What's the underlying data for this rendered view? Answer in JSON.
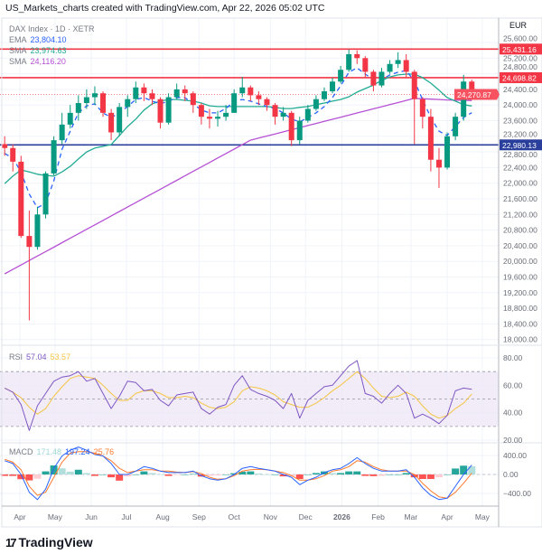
{
  "header": {
    "caption": "US_Markets_charts created with TradingView.com, Apr 22, 2026 05:02 UTC"
  },
  "legend": {
    "symbol": "DAX Index · 1D · XETR",
    "ema": {
      "label": "EMA",
      "value": "23,804.10",
      "color": "#2962ff"
    },
    "sma50": {
      "label": "SMA",
      "value": "23,974.63",
      "color": "#22ab94"
    },
    "sma200": {
      "label": "SMA",
      "value": "24,116.20",
      "color": "#b651d4"
    },
    "rsi": {
      "label": "RSI",
      "value": "57.04",
      "ma_value": "53.57",
      "color": "#7e57c2",
      "ma_color": "#f5c542"
    },
    "macd": {
      "label": "MACD",
      "hist_value": "171.48",
      "macd_value": "197.24",
      "signal_value": "25.76",
      "hist_color": "#9fd8d2",
      "macd_color": "#2962ff",
      "signal_color": "#ff7b2e"
    }
  },
  "currency": "EUR",
  "logo": {
    "text": "TradingView"
  },
  "colors": {
    "up": "#089981",
    "down": "#f23645",
    "resistance": "#f23645",
    "support": "#2a3f9c",
    "rsi_band": "#ede7f6"
  },
  "chart_data": {
    "type": "candlestick",
    "title": "DAX Index · 1D · XETR",
    "price_axis": {
      "ticks": [
        25600,
        25200,
        24800,
        24400,
        24000,
        23600,
        23200,
        22800,
        22400,
        22000,
        21600,
        21200,
        20800,
        20400,
        20000,
        19600,
        19200,
        18800,
        18400,
        18000
      ],
      "tick_labels": [
        "25,600.00",
        "25,200.00",
        "24,800.00",
        "24,400.00",
        "24,000.00",
        "23,600.00",
        "23,200.00",
        "22,800.00",
        "22,400.00",
        "22,000.00",
        "21,600.00",
        "21,200.00",
        "20,800.00",
        "20,400.00",
        "20,000.00",
        "19,600.00",
        "19,200.00",
        "18,800.00",
        "18,400.00",
        "18,000.00"
      ],
      "range": [
        18000,
        25600
      ]
    },
    "time_axis": [
      {
        "label": "Apr",
        "date": "2025-04-01"
      },
      {
        "label": "May",
        "date": "2025-05-01"
      },
      {
        "label": "Jun",
        "date": "2025-06-01"
      },
      {
        "label": "Jul",
        "date": "2025-07-01"
      },
      {
        "label": "Aug",
        "date": "2025-08-01"
      },
      {
        "label": "Sep",
        "date": "2025-09-01"
      },
      {
        "label": "Oct",
        "date": "2025-10-01"
      },
      {
        "label": "Nov",
        "date": "2025-11-01"
      },
      {
        "label": "Dec",
        "date": "2025-12-01"
      },
      {
        "label": "2026",
        "date": "2026-01-01",
        "bold": true
      },
      {
        "label": "Feb",
        "date": "2026-02-01"
      },
      {
        "label": "Mar",
        "date": "2026-03-01"
      },
      {
        "label": "Apr",
        "date": "2026-04-01"
      },
      {
        "label": "May",
        "date": "2026-05-01"
      }
    ],
    "horizontal_lines": [
      {
        "price": 25431.16,
        "label": "25,431.16",
        "color": "#f23645"
      },
      {
        "price": 24698.82,
        "label": "24,698.82",
        "color": "#f23645"
      },
      {
        "price": 22980.13,
        "label": "22,980.13",
        "color": "#2a3f9c"
      }
    ],
    "last_price": {
      "price": 24270.87,
      "label": "24,270.87",
      "color": "#f7525f"
    },
    "candles_ohlc": [
      [
        "2025-03-17",
        23000,
        23200,
        22700,
        22900
      ],
      [
        "2025-03-24",
        22900,
        23000,
        22300,
        22550
      ],
      [
        "2025-03-31",
        22550,
        22700,
        20600,
        20650
      ],
      [
        "2025-04-07",
        20650,
        21300,
        18490,
        20370
      ],
      [
        "2025-04-14",
        20370,
        21400,
        20300,
        21200
      ],
      [
        "2025-04-21",
        21200,
        22300,
        21100,
        22250
      ],
      [
        "2025-04-28",
        22250,
        23200,
        22200,
        23100
      ],
      [
        "2025-05-05",
        23100,
        23800,
        23000,
        23500
      ],
      [
        "2025-05-12",
        23500,
        24000,
        23400,
        23800
      ],
      [
        "2025-05-19",
        23800,
        24250,
        23600,
        24050
      ],
      [
        "2025-05-26",
        24050,
        24400,
        23900,
        24200
      ],
      [
        "2025-06-02",
        24200,
        24480,
        24000,
        24300
      ],
      [
        "2025-06-09",
        24300,
        24350,
        23700,
        23800
      ],
      [
        "2025-06-16",
        23800,
        23900,
        23100,
        23300
      ],
      [
        "2025-06-23",
        23300,
        24050,
        23200,
        23950
      ],
      [
        "2025-06-30",
        23950,
        24250,
        23700,
        24150
      ],
      [
        "2025-07-07",
        24150,
        24600,
        24050,
        24450
      ],
      [
        "2025-07-14",
        24450,
        24550,
        24100,
        24300
      ],
      [
        "2025-07-21",
        24300,
        24400,
        24000,
        24150
      ],
      [
        "2025-07-28",
        24150,
        24200,
        23400,
        23550
      ],
      [
        "2025-08-04",
        23550,
        24300,
        23500,
        24200
      ],
      [
        "2025-08-11",
        24200,
        24550,
        24150,
        24400
      ],
      [
        "2025-08-18",
        24400,
        24500,
        24100,
        24300
      ],
      [
        "2025-08-25",
        24300,
        24350,
        23800,
        24000
      ],
      [
        "2025-09-01",
        24000,
        24050,
        23500,
        23700
      ],
      [
        "2025-09-08",
        23700,
        23900,
        23400,
        23650
      ],
      [
        "2025-09-15",
        23650,
        23850,
        23450,
        23700
      ],
      [
        "2025-09-22",
        23700,
        24000,
        23600,
        23800
      ],
      [
        "2025-09-29",
        23800,
        24400,
        23800,
        24300
      ],
      [
        "2025-10-06",
        24300,
        24720,
        24200,
        24450
      ],
      [
        "2025-10-13",
        24450,
        24500,
        24100,
        24250
      ],
      [
        "2025-10-20",
        24250,
        24350,
        24000,
        24150
      ],
      [
        "2025-10-27",
        24150,
        24200,
        23850,
        24000
      ],
      [
        "2025-11-03",
        24000,
        24050,
        23500,
        23700
      ],
      [
        "2025-11-10",
        23700,
        23950,
        23600,
        23800
      ],
      [
        "2025-11-17",
        23800,
        23850,
        22950,
        23100
      ],
      [
        "2025-11-24",
        23100,
        23700,
        23000,
        23600
      ],
      [
        "2025-12-01",
        23600,
        24000,
        23550,
        23900
      ],
      [
        "2025-12-08",
        23900,
        24250,
        23850,
        24150
      ],
      [
        "2025-12-15",
        24150,
        24450,
        24100,
        24350
      ],
      [
        "2025-12-22",
        24350,
        24700,
        24300,
        24600
      ],
      [
        "2025-12-29",
        24600,
        25000,
        24550,
        24900
      ],
      [
        "2026-01-05",
        24900,
        25420,
        24850,
        25300
      ],
      [
        "2026-01-12",
        25300,
        25400,
        25050,
        25200
      ],
      [
        "2026-01-19",
        25200,
        25250,
        24700,
        24850
      ],
      [
        "2026-01-26",
        24850,
        24900,
        24350,
        24500
      ],
      [
        "2026-02-02",
        24500,
        24950,
        24450,
        24850
      ],
      [
        "2026-02-09",
        24850,
        25150,
        24800,
        25050
      ],
      [
        "2026-02-16",
        25050,
        25350,
        24950,
        25150
      ],
      [
        "2026-02-23",
        25150,
        25300,
        24700,
        24850
      ],
      [
        "2026-03-02",
        24850,
        24900,
        23000,
        24150
      ],
      [
        "2026-03-09",
        24150,
        24200,
        23400,
        23700
      ],
      [
        "2026-03-16",
        23700,
        23900,
        22300,
        22600
      ],
      [
        "2026-03-23",
        22600,
        22900,
        21880,
        22400
      ],
      [
        "2026-03-30",
        22400,
        23300,
        22350,
        23200
      ],
      [
        "2026-04-06",
        23200,
        23800,
        23100,
        23700
      ],
      [
        "2026-04-13",
        23700,
        24770,
        23600,
        24600
      ],
      [
        "2026-04-20",
        24600,
        24650,
        24200,
        24270.87
      ]
    ],
    "ema": [
      22760,
      22640,
      22290,
      21720,
      21370,
      21490,
      22060,
      22870,
      23330,
      23800,
      23980,
      24030,
      23800,
      23680,
      23800,
      23960,
      24140,
      24190,
      24100,
      24030,
      24100,
      24190,
      24190,
      24030,
      23870,
      23800,
      23800,
      23910,
      24100,
      24140,
      24100,
      24030,
      23960,
      23910,
      23800,
      23640,
      23570,
      23680,
      23800,
      23960,
      24190,
      24490,
      24840,
      24950,
      24790,
      24650,
      24650,
      24770,
      24840,
      24880,
      24610,
      24140,
      23680,
      23330,
      23220,
      23450,
      23680,
      23804.1
    ],
    "sma50": [
      21990,
      22180,
      22340,
      22290,
      22230,
      22200,
      22180,
      22290,
      22430,
      22620,
      22800,
      22900,
      22940,
      22990,
      23220,
      23450,
      23640,
      23870,
      24030,
      24100,
      24140,
      24140,
      24120,
      24100,
      24050,
      23980,
      23960,
      23960,
      23960,
      23960,
      23960,
      23960,
      23960,
      23940,
      23910,
      23910,
      23940,
      23960,
      24010,
      24050,
      24100,
      24140,
      24210,
      24330,
      24420,
      24510,
      24630,
      24720,
      24770,
      24790,
      24790,
      24700,
      24560,
      24380,
      24190,
      24100,
      24010,
      23974.63
    ],
    "sma200": [
      19680,
      19794,
      19908,
      20022,
      20136,
      20250,
      20364,
      20478,
      20592,
      20706,
      20820,
      20934,
      21048,
      21162,
      21276,
      21390,
      21504,
      21618,
      21732,
      21846,
      21960,
      22074,
      22188,
      22302,
      22416,
      22530,
      22644,
      22758,
      22872,
      22986,
      23100,
      23154,
      23207,
      23261,
      23314,
      23368,
      23421,
      23475,
      23528,
      23582,
      23635,
      23689,
      23742,
      23796,
      23849,
      23903,
      23956,
      24010,
      24063,
      24117,
      24170,
      24160,
      24150,
      24140,
      24130,
      24125,
      24120,
      24116.2
    ],
    "rsi": {
      "ticks": [
        80,
        60,
        40,
        20
      ],
      "tick_labels": [
        "80.00",
        "60.00",
        "40.00",
        "20.00"
      ],
      "band": [
        30,
        70
      ],
      "mid": 50,
      "values": [
        58,
        55,
        46,
        27,
        45,
        54,
        63,
        66,
        67,
        70,
        63,
        65,
        54,
        43,
        52,
        63,
        62,
        56,
        57,
        49,
        45,
        53,
        54,
        55,
        43,
        39,
        44,
        46,
        60,
        67,
        57,
        54,
        52,
        49,
        43,
        54,
        36,
        49,
        54,
        59,
        60,
        67,
        74,
        78,
        54,
        52,
        47,
        54,
        60,
        54,
        36,
        39,
        36,
        32,
        38,
        56,
        58,
        57.04
      ],
      "ma": [
        58,
        55,
        51,
        44,
        39,
        43,
        52,
        59,
        65,
        67,
        66,
        65,
        60,
        54,
        49,
        49,
        54,
        56,
        56,
        54,
        51,
        51,
        52,
        51,
        47,
        44,
        43,
        44,
        48,
        56,
        59,
        58,
        56,
        53,
        48,
        46,
        44,
        44,
        47,
        51,
        56,
        60,
        65,
        70,
        65,
        58,
        52,
        51,
        52,
        55,
        52,
        45,
        39,
        36,
        38,
        43,
        47,
        53.57
      ]
    },
    "macd": {
      "ticks": [
        400,
        0,
        -400
      ],
      "tick_labels": [
        "400.00",
        "0.00",
        "−400.00"
      ],
      "macd": [
        290,
        230,
        0,
        -375,
        -530,
        -310,
        130,
        390,
        510,
        580,
        510,
        420,
        390,
        230,
        0,
        0,
        70,
        165,
        130,
        70,
        40,
        40,
        40,
        70,
        -25,
        -90,
        -120,
        -90,
        0,
        130,
        165,
        130,
        100,
        70,
        0,
        -60,
        -215,
        -120,
        -60,
        40,
        100,
        130,
        230,
        355,
        230,
        130,
        70,
        70,
        70,
        100,
        -60,
        -280,
        -440,
        -530,
        -500,
        -250,
        0,
        197.24
      ],
      "signal": [
        320,
        260,
        100,
        -250,
        -440,
        -375,
        -60,
        260,
        450,
        480,
        480,
        450,
        390,
        290,
        130,
        40,
        70,
        100,
        100,
        70,
        70,
        50,
        40,
        60,
        20,
        -60,
        -100,
        -90,
        -25,
        70,
        100,
        110,
        100,
        70,
        40,
        -25,
        -120,
        -120,
        -90,
        -25,
        70,
        100,
        165,
        290,
        260,
        165,
        100,
        70,
        70,
        70,
        0,
        -185,
        -345,
        -470,
        -500,
        -375,
        -185,
        25.76
      ]
    }
  }
}
